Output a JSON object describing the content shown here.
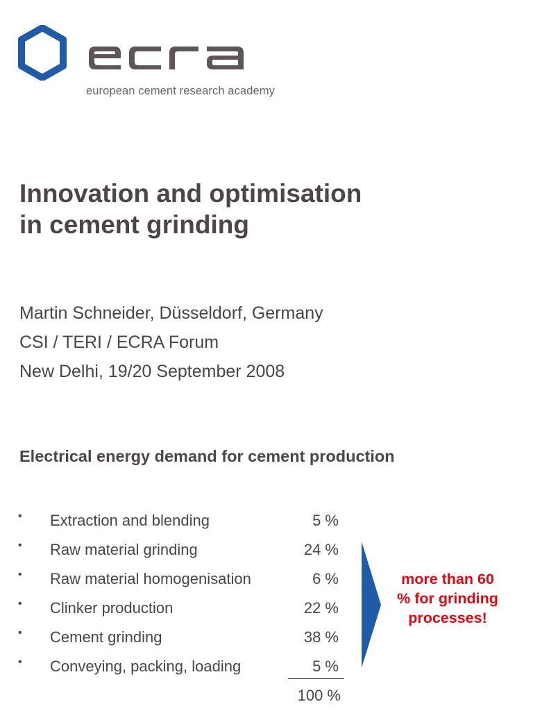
{
  "brand": {
    "logo_text": "ecra",
    "tagline": "european cement research academy",
    "primary_color": "#1f5ba6",
    "wordmark_color": "#5d5556"
  },
  "title": {
    "line1": "Innovation and optimisation",
    "line2": "in cement grinding"
  },
  "meta": {
    "author": "Martin Schneider, Düsseldorf, Germany",
    "event": "CSI / TERI / ECRA Forum",
    "date": "New Delhi, 19/20 September 2008"
  },
  "section": {
    "heading": "Electrical energy demand for cement production",
    "items": [
      {
        "label": "Extraction and blending",
        "value": "5 %"
      },
      {
        "label": "Raw material grinding",
        "value": "24 %"
      },
      {
        "label": "Raw material homogenisation",
        "value": "6 %"
      },
      {
        "label": "Clinker production",
        "value": "22 %"
      },
      {
        "label": "Cement grinding",
        "value": "38 %"
      },
      {
        "label": "Conveying, packing, loading",
        "value": "5 %"
      }
    ],
    "total": "100 %",
    "bullet_char": "•",
    "callout": "more than 60 % for grinding processes!",
    "callout_color": "#e30613",
    "arrow_color": "#1f5ba6"
  }
}
